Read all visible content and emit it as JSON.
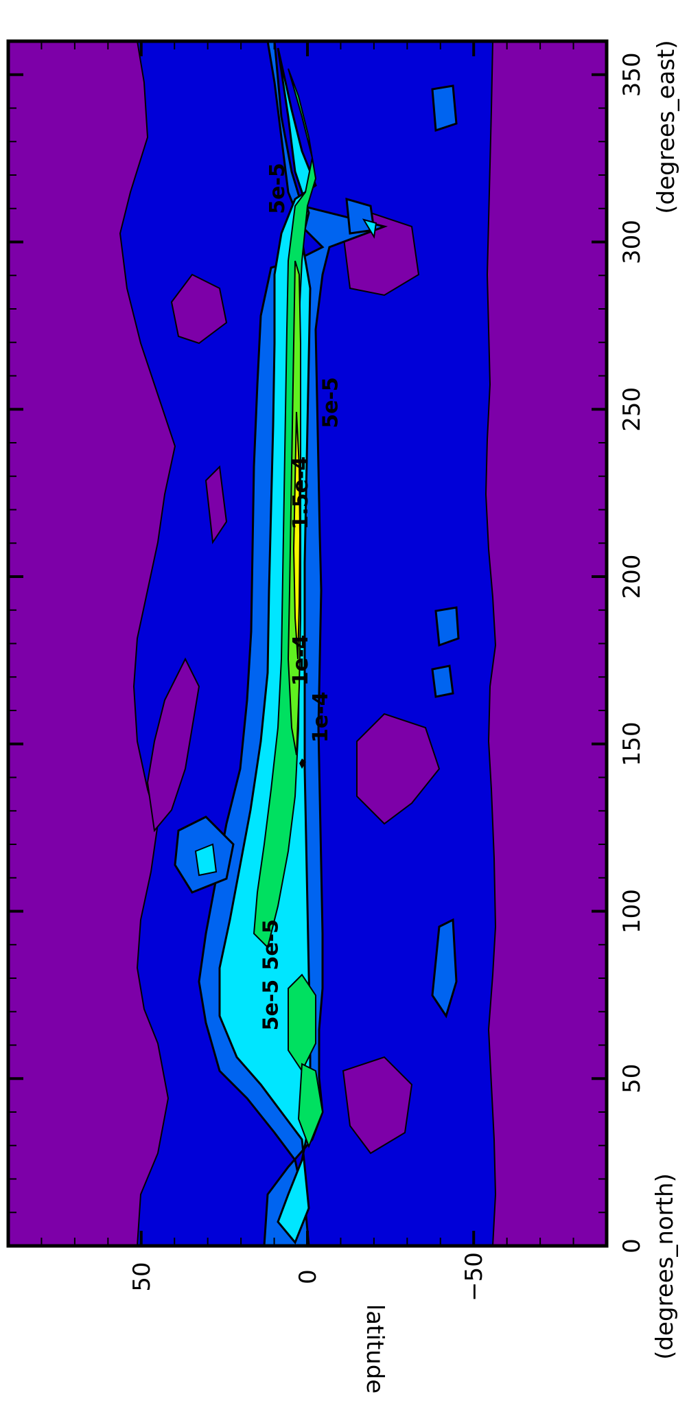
{
  "chart_data": {
    "type": "heatmap",
    "title": "",
    "xlabel": "latitude",
    "xunits": "(degrees_north)",
    "ylabel": "",
    "yunits": "(degrees_east)",
    "x_range": [
      -90,
      90
    ],
    "y_range": [
      0,
      360
    ],
    "x_ticks": [
      {
        "value": 50,
        "label": "50"
      },
      {
        "value": 0,
        "label": "0"
      },
      {
        "value": -50,
        "label": "−50"
      }
    ],
    "y_ticks": [
      {
        "value": 0,
        "label": "0"
      },
      {
        "value": 50,
        "label": "50"
      },
      {
        "value": 100,
        "label": "100"
      },
      {
        "value": 150,
        "label": "150"
      },
      {
        "value": 200,
        "label": "200"
      },
      {
        "value": 250,
        "label": "250"
      },
      {
        "value": 300,
        "label": "300"
      },
      {
        "value": 350,
        "label": "350"
      }
    ],
    "rotated": true,
    "fill_colors": {
      "purple": "#7d00a8",
      "dark_blue": "#0000d8",
      "medium_blue": "#0064f0",
      "cyan": "#00e6ff",
      "green": "#00e060",
      "light_green": "#60f020",
      "yellow": "#f8f800"
    },
    "contour_labels": [
      {
        "text": "5e-5",
        "lat": 9,
        "lon": 90
      },
      {
        "text": "5e-5",
        "lat": 9,
        "lon": 72
      },
      {
        "text": "5e-5",
        "lat": 7,
        "lon": 316
      },
      {
        "text": "5e-5",
        "lat": -9,
        "lon": 252
      },
      {
        "text": "1.5e-4",
        "lat": 0,
        "lon": 225
      },
      {
        "text": "1e-4",
        "lat": 0,
        "lon": 175
      },
      {
        "text": "1e-4",
        "lat": -6,
        "lon": 158
      }
    ]
  }
}
